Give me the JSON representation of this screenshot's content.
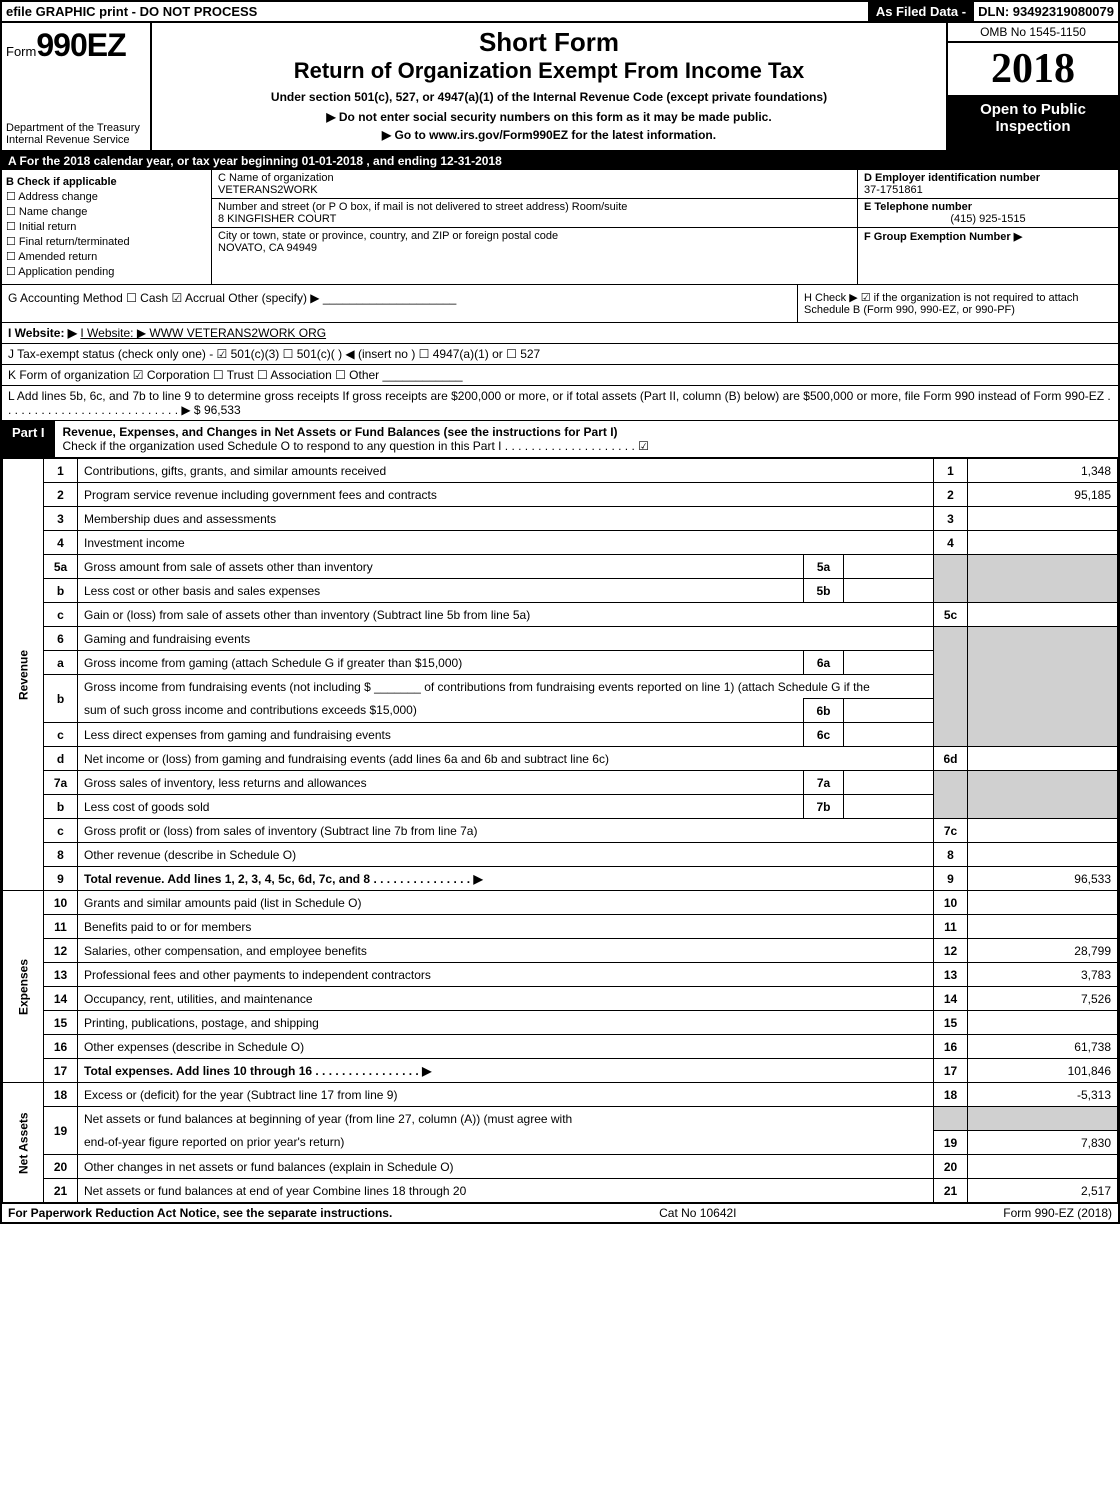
{
  "top": {
    "left": "efile GRAPHIC print - DO NOT PROCESS",
    "mid": "As Filed Data -",
    "right": "DLN: 93492319080079"
  },
  "header": {
    "form_prefix": "Form",
    "form_no": "990EZ",
    "dept1": "Department of the Treasury",
    "dept2": "Internal Revenue Service",
    "short": "Short Form",
    "title": "Return of Organization Exempt From Income Tax",
    "sub": "Under section 501(c), 527, or 4947(a)(1) of the Internal Revenue Code (except private foundations)",
    "arrow1": "▶ Do not enter social security numbers on this form as it may be made public.",
    "arrow2": "▶ Go to www.irs.gov/Form990EZ for the latest information.",
    "omb": "OMB No 1545-1150",
    "year": "2018",
    "open": "Open to Public Inspection"
  },
  "period": "A For the 2018 calendar year, or tax year beginning 01-01-2018 , and ending 12-31-2018",
  "checkB": {
    "label": "B Check if applicable",
    "items": [
      "☐ Address change",
      "☐ Name change",
      "☐ Initial return",
      "☐ Final return/terminated",
      "☐ Amended return",
      "☐ Application pending"
    ]
  },
  "nameBox": {
    "c_label": "C Name of organization",
    "c_name": "VETERANS2WORK",
    "addr_label": "Number and street (or P O box, if mail is not delivered to street address) Room/suite",
    "addr": "8 KINGFISHER COURT",
    "city_label": "City or town, state or province, country, and ZIP or foreign postal code",
    "city": "NOVATO, CA 94949"
  },
  "einBox": {
    "d_label": "D Employer identification number",
    "d_val": "37-1751861",
    "e_label": "E Telephone number",
    "e_val": "(415) 925-1515",
    "f_label": "F Group Exemption Number ▶"
  },
  "g": "G Accounting Method   ☐ Cash  ☑ Accrual  Other (specify) ▶ ____________________",
  "h": "H  Check ▶  ☑ if the organization is not required to attach Schedule B (Form 990, 990-EZ, or 990-PF)",
  "i": "I Website: ▶ WWW VETERANS2WORK ORG",
  "j": "J Tax-exempt status (check only one) - ☑ 501(c)(3) ☐ 501(c)( ) ◀ (insert no ) ☐ 4947(a)(1) or ☐ 527",
  "k": "K Form of organization   ☑ Corporation  ☐ Trust  ☐ Association  ☐ Other ____________",
  "l": "L Add lines 5b, 6c, and 7b to line 9 to determine gross receipts If gross receipts are $200,000 or more, or if total assets (Part II, column (B) below) are $500,000 or more, file Form 990 instead of Form 990-EZ . . . . . . . . . . . . . . . . . . . . . . . . . . . ▶ $ 96,533",
  "part1": {
    "label": "Part I",
    "title": "Revenue, Expenses, and Changes in Net Assets or Fund Balances (see the instructions for Part I)",
    "sub": "Check if the organization used Schedule O to respond to any question in this Part I . . . . . . . . . . . . . . . . . . . . ☑"
  },
  "sides": {
    "rev": "Revenue",
    "exp": "Expenses",
    "na": "Net Assets"
  },
  "lines": {
    "1": {
      "d": "Contributions, gifts, grants, and similar amounts received",
      "a": "1,348"
    },
    "2": {
      "d": "Program service revenue including government fees and contracts",
      "a": "95,185"
    },
    "3": {
      "d": "Membership dues and assessments",
      "a": ""
    },
    "4": {
      "d": "Investment income",
      "a": ""
    },
    "5a": {
      "d": "Gross amount from sale of assets other than inventory",
      "sn": "5a"
    },
    "5b": {
      "d": "Less cost or other basis and sales expenses",
      "sn": "5b"
    },
    "5c": {
      "d": "Gain or (loss) from sale of assets other than inventory (Subtract line 5b from line 5a)",
      "a": ""
    },
    "6": {
      "d": "Gaming and fundraising events"
    },
    "6a": {
      "d": "Gross income from gaming (attach Schedule G if greater than $15,000)",
      "sn": "6a"
    },
    "6b1": {
      "d": "Gross income from fundraising events (not including $ _______ of contributions from fundraising events reported on line 1) (attach Schedule G if the"
    },
    "6b2": {
      "d": "sum of such gross income and contributions exceeds $15,000)",
      "sn": "6b"
    },
    "6c": {
      "d": "Less direct expenses from gaming and fundraising events",
      "sn": "6c"
    },
    "6d": {
      "d": "Net income or (loss) from gaming and fundraising events (add lines 6a and 6b and subtract line 6c)",
      "a": ""
    },
    "7a": {
      "d": "Gross sales of inventory, less returns and allowances",
      "sn": "7a"
    },
    "7b": {
      "d": "Less cost of goods sold",
      "sn": "7b"
    },
    "7c": {
      "d": "Gross profit or (loss) from sales of inventory (Subtract line 7b from line 7a)",
      "a": ""
    },
    "8": {
      "d": "Other revenue (describe in Schedule O)",
      "a": ""
    },
    "9": {
      "d": "Total revenue. Add lines 1, 2, 3, 4, 5c, 6d, 7c, and 8  . . . . . . . . . . . . . . . ▶",
      "a": "96,533",
      "bold": true
    },
    "10": {
      "d": "Grants and similar amounts paid (list in Schedule O)",
      "a": ""
    },
    "11": {
      "d": "Benefits paid to or for members",
      "a": ""
    },
    "12": {
      "d": "Salaries, other compensation, and employee benefits",
      "a": "28,799"
    },
    "13": {
      "d": "Professional fees and other payments to independent contractors",
      "a": "3,783"
    },
    "14": {
      "d": "Occupancy, rent, utilities, and maintenance",
      "a": "7,526"
    },
    "15": {
      "d": "Printing, publications, postage, and shipping",
      "a": ""
    },
    "16": {
      "d": "Other expenses (describe in Schedule O)",
      "a": "61,738"
    },
    "17": {
      "d": "Total expenses. Add lines 10 through 16   . . . . . . . . . . . . . . . . ▶",
      "a": "101,846",
      "bold": true
    },
    "18": {
      "d": "Excess or (deficit) for the year (Subtract line 17 from line 9)",
      "a": "-5,313"
    },
    "19a": {
      "d": "Net assets or fund balances at beginning of year (from line 27, column (A)) (must agree with"
    },
    "19b": {
      "d": "end-of-year figure reported on prior year's return)",
      "a": "7,830"
    },
    "20": {
      "d": "Other changes in net assets or fund balances (explain in Schedule O)",
      "a": ""
    },
    "21": {
      "d": "Net assets or fund balances at end of year Combine lines 18 through 20",
      "a": "2,517"
    }
  },
  "footer": {
    "left": "For Paperwork Reduction Act Notice, see the separate instructions.",
    "mid": "Cat No 10642I",
    "right": "Form 990-EZ (2018)"
  }
}
